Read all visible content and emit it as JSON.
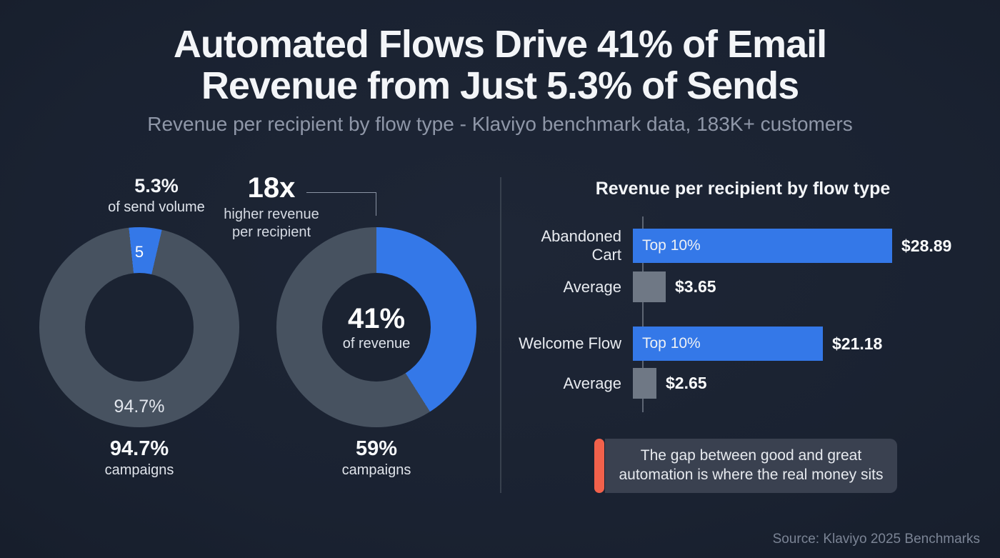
{
  "page": {
    "title_line1": "Automated Flows Drive 41% of Email",
    "title_line2": "Revenue from Just 5.3% of Sends",
    "subtitle": "Revenue per recipient by flow type - Klaviyo benchmark data, 183K+ customers",
    "source": "Source: Klaviyo 2025 Benchmarks"
  },
  "colors": {
    "background": "#1b2332",
    "blue": "#3478e8",
    "donut_gray": "#475260",
    "bar_gray": "#6f7885",
    "axis": "#5d6573",
    "divider": "#38414e",
    "callout_bg": "#3a4150",
    "accent_orange": "#f2614b",
    "text_primary": "#f3f5f8",
    "text_secondary": "#8f97a8"
  },
  "chart_data": [
    {
      "type": "pie",
      "name": "send-volume-donut",
      "title": "5.3% of send volume",
      "slices": [
        {
          "label": "flows",
          "value": 5.3,
          "color": "#3478e8"
        },
        {
          "label": "campaigns",
          "value": 94.7,
          "color": "#475260"
        }
      ],
      "callout_value": "5.3%",
      "callout_label": "of send volume",
      "slice_tag": "5",
      "ring_label": "94.7%",
      "footer_value": "94.7%",
      "footer_label": "campaigns"
    },
    {
      "type": "pie",
      "name": "revenue-share-donut",
      "title": "41% of revenue",
      "slices": [
        {
          "label": "flows",
          "value": 41,
          "color": "#3478e8"
        },
        {
          "label": "campaigns",
          "value": 59,
          "color": "#475260"
        }
      ],
      "annotation_value": "18x",
      "annotation_label_line1": "higher revenue",
      "annotation_label_line2": "per recipient",
      "center_value": "41%",
      "center_label": "of revenue",
      "footer_value": "59%",
      "footer_label": "campaigns"
    },
    {
      "type": "bar",
      "name": "revenue-per-recipient-bars",
      "title": "Revenue per recipient by flow type",
      "orientation": "horizontal",
      "max_value": 28.89,
      "rows": [
        {
          "label": "Abandoned Cart",
          "bar_label": "Top 10%",
          "value": 28.89,
          "display": "$28.89",
          "color": "blue"
        },
        {
          "label": "Average",
          "bar_label": "",
          "value": 3.65,
          "display": "$3.65",
          "color": "gray"
        },
        {
          "label": "Welcome Flow",
          "bar_label": "Top 10%",
          "value": 21.18,
          "display": "$21.18",
          "color": "blue"
        },
        {
          "label": "Average",
          "bar_label": "",
          "value": 2.65,
          "display": "$2.65",
          "color": "gray"
        }
      ]
    }
  ],
  "callout": {
    "line1": "The gap between good and great",
    "line2": "automation is where the real money sits"
  }
}
